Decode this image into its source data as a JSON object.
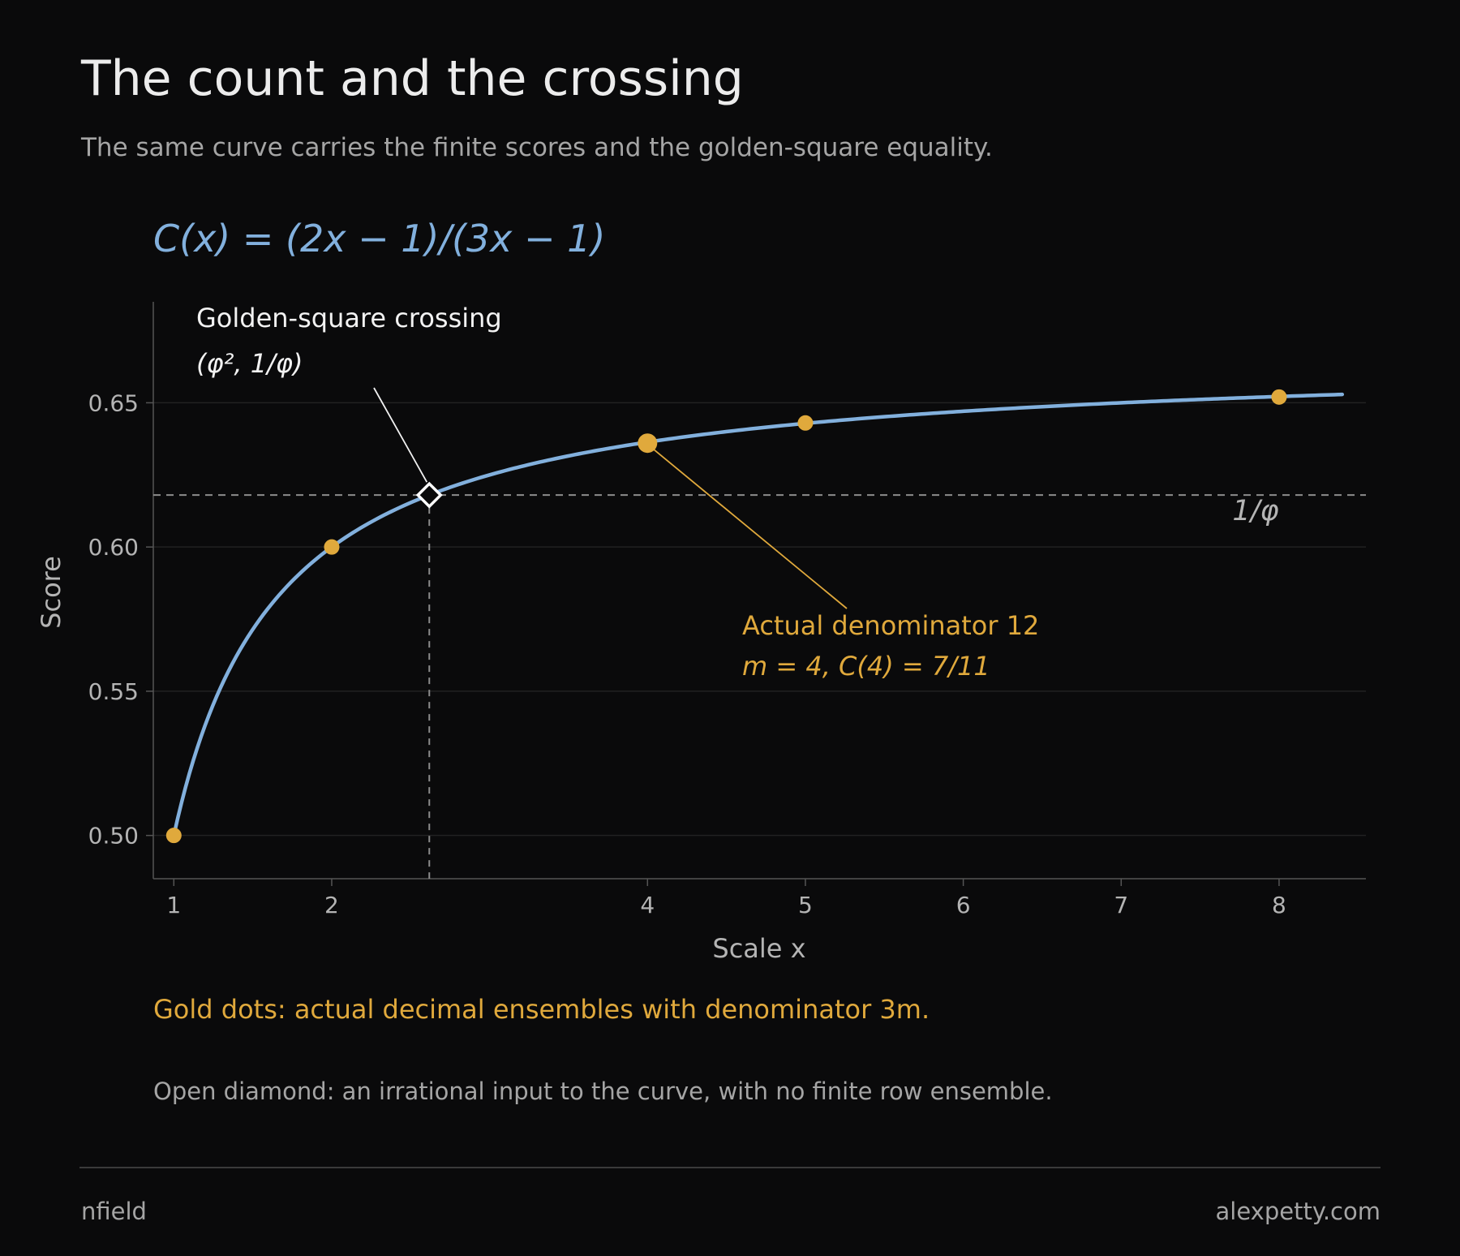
{
  "header": {
    "title": "The count and the crossing",
    "subtitle": "The same curve carries the finite scores and the golden-square equality."
  },
  "chart_data": {
    "type": "line",
    "title": "C(x) = (2x − 1)/(3x − 1)",
    "xlabel": "Scale x",
    "ylabel": "Score",
    "xlim": [
      0.87,
      8.55
    ],
    "ylim": [
      0.485,
      0.685
    ],
    "xticks": [
      1,
      2,
      4,
      5,
      6,
      7,
      8
    ],
    "yticks": [
      0.5,
      0.55,
      0.6,
      0.65
    ],
    "ytick_labels": [
      "0.50",
      "0.55",
      "0.60",
      "0.65"
    ],
    "grid": "horizontal",
    "curve": {
      "x_start": 1,
      "x_end": 8.4,
      "color": "#82b0dd"
    },
    "points": [
      {
        "x": 1,
        "y": 0.5
      },
      {
        "x": 2,
        "y": 0.6
      },
      {
        "x": 4,
        "y": 0.636,
        "highlight": true
      },
      {
        "x": 5,
        "y": 0.643
      },
      {
        "x": 8,
        "y": 0.652
      }
    ],
    "reference_line": {
      "y": 0.618,
      "label": "1/φ"
    },
    "crossing": {
      "x": 2.618,
      "y": 0.618
    },
    "annotations": {
      "crossing": {
        "line1": "Golden-square crossing",
        "line2": "(φ², 1/φ)"
      },
      "denominator": {
        "line1": "Actual denominator 12",
        "line2": "m = 4,    C(4) = 7/11"
      }
    },
    "colors": {
      "curve": "#82b0dd",
      "gold": "#e0a93c",
      "axis": "#555555",
      "grid": "#222222",
      "reference": "#8c8c8c",
      "tick_text": "#b4b4b4"
    }
  },
  "notes": {
    "gold": "Gold dots: actual decimal ensembles with denominator 3m.",
    "open": "Open diamond: an irrational input to the curve, with no finite row ensemble."
  },
  "footer": {
    "left": "nfield",
    "right": "alexpetty.com"
  }
}
